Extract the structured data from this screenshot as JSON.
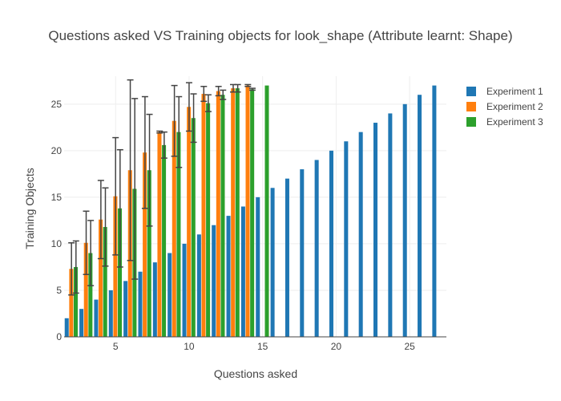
{
  "chart_data": {
    "type": "bar",
    "title": "Questions asked VS Training objects for look_shape (Attribute learnt: Shape)",
    "xlabel": "Questions asked",
    "ylabel": "Training Objects",
    "xlim": [
      1.5,
      27.5
    ],
    "ylim": [
      0,
      28
    ],
    "xticks": [
      5,
      10,
      15,
      20,
      25
    ],
    "yticks": [
      0,
      5,
      10,
      15,
      20,
      25
    ],
    "grid": true,
    "legend_position": "top-right",
    "series": [
      {
        "name": "Experiment 1",
        "color": "#1f77b4",
        "x": [
          2,
          3,
          4,
          5,
          6,
          7,
          8,
          9,
          10,
          11,
          12,
          13,
          14,
          15,
          16,
          17,
          18,
          19,
          20,
          21,
          22,
          23,
          24,
          25,
          26,
          27
        ],
        "values": [
          2,
          3,
          4,
          5,
          6,
          7,
          8,
          9,
          10,
          11,
          12,
          13,
          14,
          15,
          16,
          17,
          18,
          19,
          20,
          21,
          22,
          23,
          24,
          25,
          26,
          27
        ]
      },
      {
        "name": "Experiment 2",
        "color": "#ff7f0e",
        "x": [
          2,
          3,
          4,
          5,
          6,
          7,
          8,
          9,
          10,
          11,
          12,
          13,
          14
        ],
        "values": [
          7.3,
          10.1,
          12.6,
          15.1,
          17.9,
          19.8,
          22,
          23.2,
          24.7,
          26.1,
          26.4,
          26.7,
          27
        ],
        "errors": [
          2.8,
          3.4,
          4.2,
          6.3,
          9.7,
          6,
          0.1,
          3.8,
          2.6,
          0.8,
          0.5,
          0.4,
          0.1
        ]
      },
      {
        "name": "Experiment 3",
        "color": "#2ca02c",
        "x": [
          2,
          3,
          4,
          5,
          6,
          7,
          8,
          9,
          10,
          11,
          12,
          13,
          14,
          15
        ],
        "values": [
          7.5,
          9,
          11.8,
          13.8,
          15.9,
          17.9,
          20.6,
          22,
          23.5,
          25.1,
          26,
          26.7,
          26.6,
          27
        ],
        "errors": [
          2.8,
          3.5,
          4.2,
          6.3,
          9.7,
          6,
          1.4,
          3.8,
          2.6,
          0.9,
          0.5,
          0.4,
          0.1,
          0
        ]
      }
    ]
  }
}
